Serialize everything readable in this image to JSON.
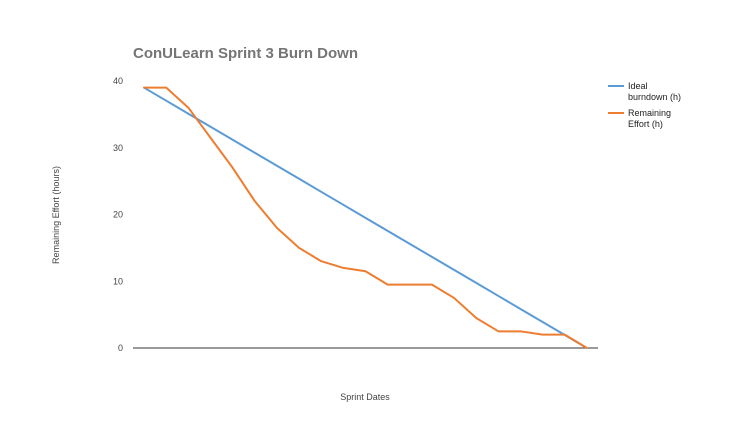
{
  "chart_data": {
    "type": "line",
    "title": "ConULearn Sprint 3 Burn Down",
    "xlabel": "Sprint Dates",
    "ylabel": "Remaining Effort (hours)",
    "ylim": [
      0,
      40
    ],
    "yticks": [
      0,
      10,
      20,
      30,
      40
    ],
    "x": [
      1,
      2,
      3,
      4,
      5,
      6,
      7,
      8,
      9,
      10,
      11,
      12,
      13,
      14,
      15,
      16,
      17,
      18,
      19,
      20,
      21
    ],
    "xlim": [
      0.5,
      21.5
    ],
    "grid": false,
    "legend_position": "right",
    "series": [
      {
        "name": "Ideal burndown (h)",
        "name_lines": [
          "Ideal",
          "burndown (h)"
        ],
        "color": "#5b9bd5",
        "values": [
          39,
          37.05,
          35.1,
          33.15,
          31.2,
          29.25,
          27.3,
          25.35,
          23.4,
          21.45,
          19.5,
          17.55,
          15.6,
          13.65,
          11.7,
          9.75,
          7.8,
          5.85,
          3.9,
          1.95,
          0
        ]
      },
      {
        "name": "Remaining Effort (h)",
        "name_lines": [
          "Remaining",
          "Effort (h)"
        ],
        "color": "#ed7d31",
        "values": [
          39,
          39,
          36,
          31.5,
          27,
          22,
          18,
          15,
          13,
          12,
          11.5,
          9.5,
          9.5,
          9.5,
          7.5,
          4.5,
          2.5,
          2.5,
          2,
          2,
          0
        ]
      }
    ]
  }
}
